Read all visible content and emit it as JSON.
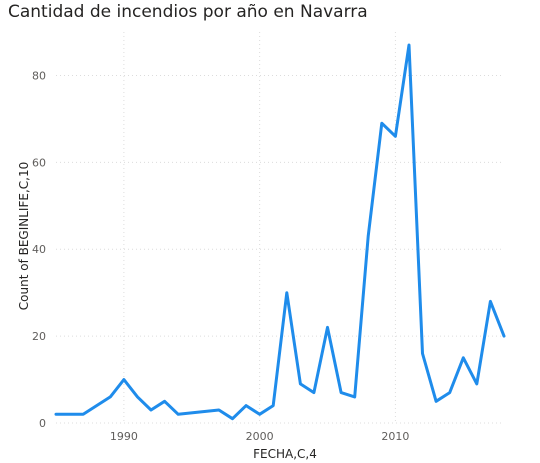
{
  "chart_data": {
    "type": "line",
    "title": "Cantidad de incendios por año en Navarra",
    "xlabel": "FECHA,C,4",
    "ylabel": "Count of BEGINLIFE,C,10",
    "xlim": [
      1985,
      2018
    ],
    "ylim": [
      0,
      90
    ],
    "xticks": [
      1990,
      2000,
      2010
    ],
    "yticks": [
      0,
      20,
      40,
      60,
      80
    ],
    "grid": true,
    "line_color": "#1f8ceb",
    "series": [
      {
        "x": [
          1985,
          1987,
          1989,
          1990,
          1991,
          1992,
          1993,
          1994,
          1997,
          1998,
          1999,
          2000,
          2001,
          2002,
          2003,
          2004,
          2005,
          2006,
          2007,
          2008,
          2009,
          2010,
          2011,
          2012,
          2013,
          2014,
          2015,
          2016,
          2017,
          2018
        ],
        "values": [
          2,
          2,
          6,
          10,
          6,
          3,
          5,
          2,
          3,
          1,
          4,
          2,
          4,
          30,
          9,
          7,
          22,
          7,
          6,
          43,
          69,
          66,
          87,
          16,
          5,
          7,
          15,
          9,
          28,
          20
        ]
      }
    ]
  }
}
